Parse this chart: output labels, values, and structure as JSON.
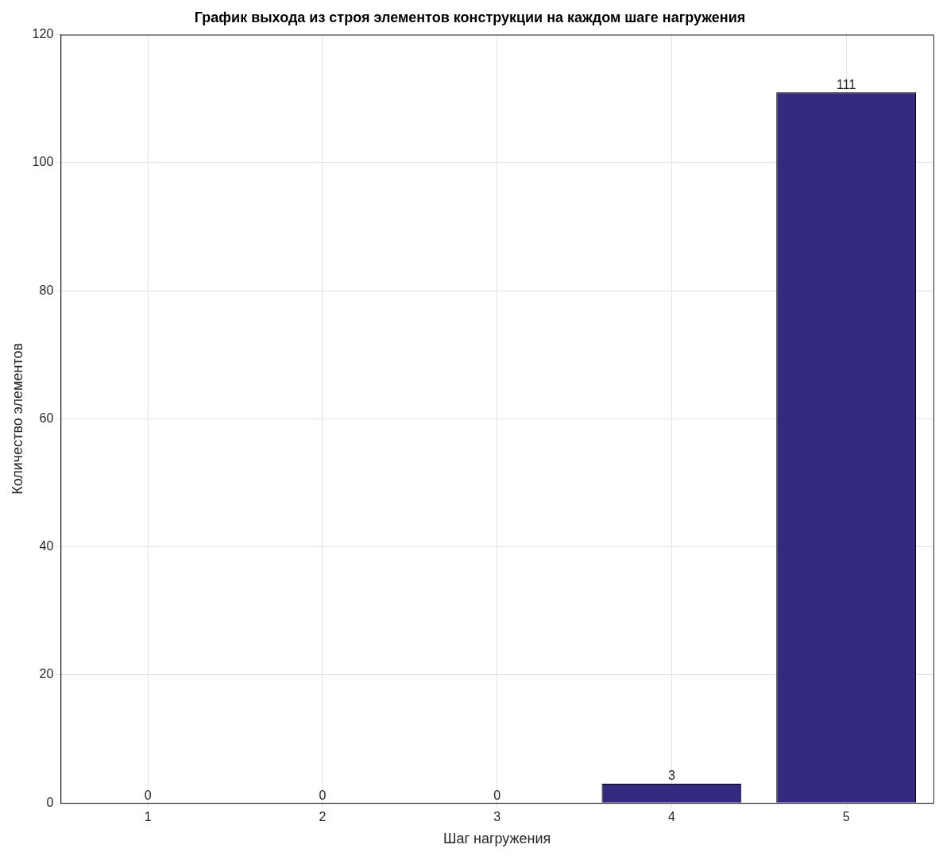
{
  "chart_data": {
    "type": "bar",
    "title": "График выхода из строя элементов конструкции на каждом шаге нагружения",
    "xlabel": "Шаг нагружения",
    "ylabel": "Количество элементов",
    "categories": [
      "1",
      "2",
      "3",
      "4",
      "5"
    ],
    "values": [
      0,
      0,
      0,
      3,
      111
    ],
    "color": "#332a80",
    "ylim": [
      0,
      120
    ],
    "yticks": [
      0,
      20,
      40,
      60,
      80,
      100,
      120
    ],
    "grid": true,
    "data_labels": true
  }
}
